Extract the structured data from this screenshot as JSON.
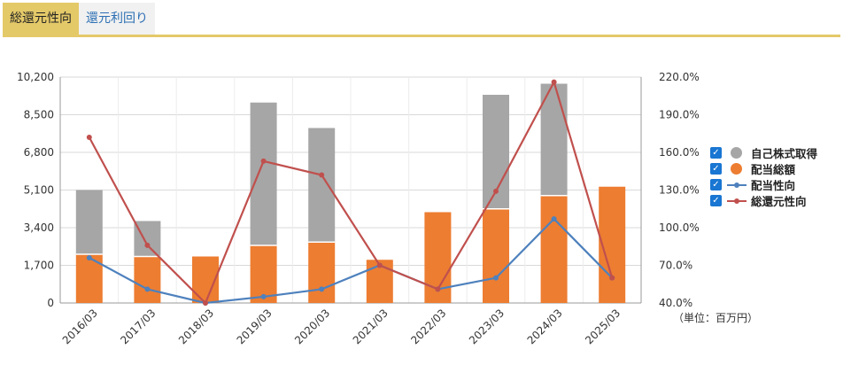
{
  "tabs": [
    {
      "label": "総還元性向",
      "active": true
    },
    {
      "label": "還元利回り",
      "active": false
    }
  ],
  "unit_label": "（単位：百万円）",
  "legend": [
    {
      "label": "自己株式取得",
      "checked": true,
      "color": "#a6a6a6",
      "kind": "bar"
    },
    {
      "label": "配当総額",
      "checked": true,
      "color": "#ed7d31",
      "kind": "bar"
    },
    {
      "label": "配当性向",
      "checked": true,
      "color": "#4e81bd",
      "kind": "line"
    },
    {
      "label": "総還元性向",
      "checked": true,
      "color": "#c0504d",
      "kind": "line"
    }
  ],
  "chart_data": {
    "type": "bar",
    "stacked": true,
    "categories": [
      "2016/03",
      "2017/03",
      "2018/03",
      "2019/03",
      "2020/03",
      "2021/03",
      "2022/03",
      "2023/03",
      "2024/03",
      "2025/03"
    ],
    "series": [
      {
        "name": "配当総額",
        "type": "bar",
        "axis": "left",
        "color": "#ed7d31",
        "values": [
          2200,
          2100,
          2100,
          2600,
          2750,
          1950,
          4100,
          4250,
          4850,
          5250
        ]
      },
      {
        "name": "自己株式取得",
        "type": "bar",
        "axis": "left",
        "color": "#a6a6a6",
        "values": [
          2900,
          1600,
          0,
          6450,
          5150,
          0,
          0,
          5150,
          5050,
          0
        ]
      },
      {
        "name": "配当性向",
        "type": "line",
        "axis": "right",
        "color": "#4e81bd",
        "values": [
          76,
          51,
          40,
          45,
          51,
          70,
          51,
          60,
          107,
          60
        ]
      },
      {
        "name": "総還元性向",
        "type": "line",
        "axis": "right",
        "color": "#c0504d",
        "values": [
          172,
          86,
          40,
          153,
          142,
          70,
          51,
          129,
          216,
          60
        ]
      }
    ],
    "y_left": {
      "min": 0,
      "max": 10200,
      "ticks": [
        "0",
        "1,700",
        "3,400",
        "5,100",
        "6,800",
        "8,500",
        "10,200"
      ]
    },
    "y_right": {
      "min": 40,
      "max": 220,
      "ticks": [
        "40.0%",
        "70.0%",
        "100.0%",
        "130.0%",
        "160.0%",
        "190.0%",
        "220.0%"
      ]
    },
    "grid": true,
    "legend_position": "right"
  }
}
